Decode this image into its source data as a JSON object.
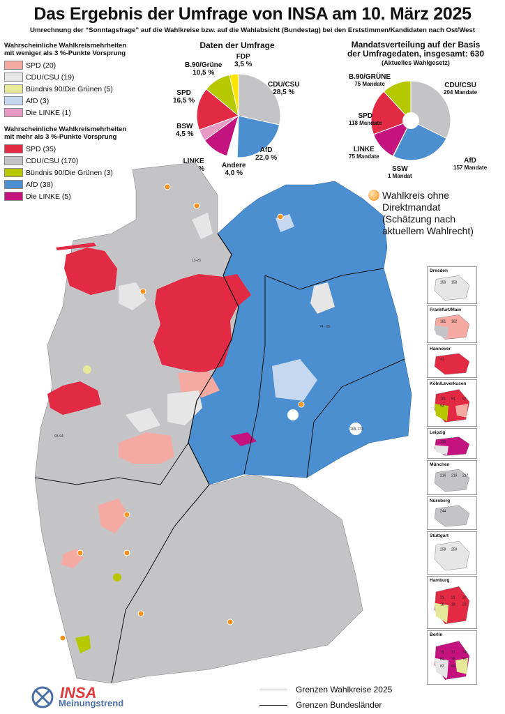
{
  "title": "Das Ergebnis der Umfrage von INSA am 10. März 2025",
  "subtitle": "Umrechnung der “Sonntagsfrage” auf die Wahlkreise bzw. auf die Wahlabsicht (Bundestag) bei den Erststimmen/Kandidaten nach Ost/West",
  "legend_small": {
    "heading_line1": "Wahrscheinliche Wahlkreismehrheiten",
    "heading_line2": "mit weniger als 3 %-Punkte Vorsprung",
    "items": [
      {
        "label": "SPD (20)",
        "color": "#f4aaa3"
      },
      {
        "label": "CDU/CSU (19)",
        "color": "#e6e6e6"
      },
      {
        "label": "Bündnis 90/Die Grünen (5)",
        "color": "#e6e89a"
      },
      {
        "label": "AfD (3)",
        "color": "#c5d8ef"
      },
      {
        "label": "Die LINKE (1)",
        "color": "#e89ac4"
      }
    ]
  },
  "legend_large": {
    "heading_line1": "Wahrscheinliche Wahlkreismehrheiten",
    "heading_line2": "mit mehr als 3 %-Punkte Vorsprung",
    "items": [
      {
        "label": "SPD (35)",
        "color": "#e22a44"
      },
      {
        "label": "CDU/CSU (170)",
        "color": "#c4c4c6"
      },
      {
        "label": "Bündnis 90/Die Grünen (3)",
        "color": "#b5c800"
      },
      {
        "label": "AfD (38)",
        "color": "#4b8fd0"
      },
      {
        "label": "Die LINKE (5)",
        "color": "#c4127f"
      }
    ]
  },
  "chart_data": [
    {
      "type": "pie",
      "title": "Daten der Umfrage",
      "slices": [
        {
          "label": "CDU/CSU",
          "value": 28.5,
          "value_text": "28,5 %",
          "color": "#c4c4c6"
        },
        {
          "label": "AfD",
          "value": 22.0,
          "value_text": "22,0 %",
          "color": "#4b8fd0"
        },
        {
          "label": "Andere",
          "value": 4.0,
          "value_text": "4,0 %",
          "color": "#ffffff"
        },
        {
          "label": "LINKE",
          "value": 10.5,
          "value_text": "10,5 %",
          "color": "#c4127f"
        },
        {
          "label": "BSW",
          "value": 4.5,
          "value_text": "4,5 %",
          "color": "#e89ac4"
        },
        {
          "label": "SPD",
          "value": 16.5,
          "value_text": "16,5 %",
          "color": "#e22a44"
        },
        {
          "label": "B.90/Grüne",
          "value": 10.5,
          "value_text": "10,5 %",
          "color": "#b5c800"
        },
        {
          "label": "FDP",
          "value": 3.5,
          "value_text": "3,5 %",
          "color": "#ffe600"
        }
      ]
    },
    {
      "type": "pie",
      "title_line1": "Mandatsverteilung auf der Basis",
      "title_line2": "der Umfragedaten, insgesamt: 630",
      "title_line3": "(Aktuelles Wahlgesetz)",
      "total": 630,
      "slices": [
        {
          "label": "CDU/CSU",
          "value": 204,
          "value_text": "204 Mandate",
          "color": "#c4c4c6"
        },
        {
          "label": "AfD",
          "value": 157,
          "value_text": "157 Mandate",
          "color": "#4b8fd0"
        },
        {
          "label": "SSW",
          "value": 1,
          "value_text": "1 Mandat",
          "color": "#1e3a78"
        },
        {
          "label": "LINKE",
          "value": 75,
          "value_text": "75 Mandate",
          "color": "#c4127f"
        },
        {
          "label": "SPD",
          "value": 118,
          "value_text": "118 Mandate",
          "color": "#e22a44"
        },
        {
          "label": "B.90/GRÜNE",
          "value": 75,
          "value_text": "75 Mandate",
          "color": "#b5c800"
        }
      ]
    }
  ],
  "note": {
    "line1": "Wahlkreis ohne",
    "line2": "Direktmandat",
    "line3": "(Schätzung nach",
    "line4": "aktuellem Wahlrecht)"
  },
  "insets": [
    {
      "label": "Dresden",
      "numbers": [
        "159",
        "158"
      ]
    },
    {
      "label": "Frankfurt/Main",
      "numbers": [
        "181",
        "182"
      ]
    },
    {
      "label": "Hannover",
      "numbers": [
        "41"
      ]
    },
    {
      "label": "Köln/Leverkusen",
      "numbers": [
        "101",
        "94",
        "92",
        "93"
      ]
    },
    {
      "label": "Leipzig",
      "numbers": [
        "151"
      ]
    },
    {
      "label": "München",
      "numbers": [
        "216",
        "219",
        "217"
      ]
    },
    {
      "label": "Nürnberg",
      "numbers": [
        "244"
      ]
    },
    {
      "label": "Stuttgart",
      "numbers": [
        "258",
        "259"
      ]
    },
    {
      "label": "Hamburg",
      "numbers": [
        "21",
        "22",
        "20",
        "18",
        "19",
        "23"
      ]
    },
    {
      "label": "Berlin",
      "numbers": [
        "75",
        "77",
        "74",
        "84",
        "78",
        "76",
        "82",
        "83"
      ]
    }
  ],
  "map_labels": [
    "13-23",
    "74 - 85",
    "93-94",
    "168-170"
  ],
  "line_legend": {
    "wahlkreise": "Grenzen Wahlkreise 2025",
    "bundeslaender": "Grenzen Bundesländer"
  },
  "logo": {
    "brand": "INSA",
    "subtitle": "Meinungstrend"
  },
  "icons": [
    "pie-chart",
    "map",
    "orange-dot-marker",
    "insa-logo"
  ]
}
